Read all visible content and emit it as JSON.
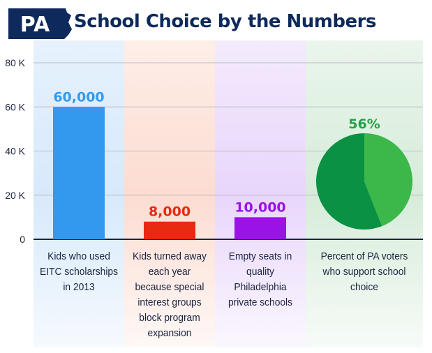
{
  "header": {
    "badge": "PA",
    "title": "School Choice by the Numbers"
  },
  "colors": {
    "navy": "#0e2a5c",
    "bar_blue": "#3399ee",
    "bar_red": "#e82a10",
    "bar_purple": "#9a12e6",
    "pie_dark": "#0a9144",
    "pie_light": "#3cb84a",
    "label_green": "#23a047"
  },
  "chart_data": {
    "type": "bar",
    "ylim": [
      0,
      80000
    ],
    "yticks": [
      0,
      20000,
      40000,
      60000,
      80000
    ],
    "ytick_labels": [
      "0",
      "20 K",
      "40 K",
      "60 K",
      "80 K"
    ],
    "grid": true,
    "categories": [
      "Kids who used EITC scholarships in 2013",
      "Kids turned away each year because special interest groups block program expansion",
      "Empty seats in quality Philadelphia private schools"
    ],
    "values": [
      60000,
      8000,
      10000
    ],
    "value_labels": [
      "60,000",
      "8,000",
      "10,000"
    ],
    "pie": {
      "category": "Percent of PA voters who support school choice",
      "value_percent": 56,
      "value_label": "56%"
    }
  },
  "labels": {
    "cat1": [
      "Kids who used",
      "EITC scholarships",
      "in 2013"
    ],
    "cat2": [
      "Kids turned away",
      "each year",
      "because special",
      "interest groups",
      "block program",
      "expansion"
    ],
    "cat3": [
      "Empty seats in",
      "quality",
      "Philadelphia",
      "private schools"
    ],
    "cat4": [
      "Percent of PA voters",
      "who support school",
      "choice"
    ]
  }
}
